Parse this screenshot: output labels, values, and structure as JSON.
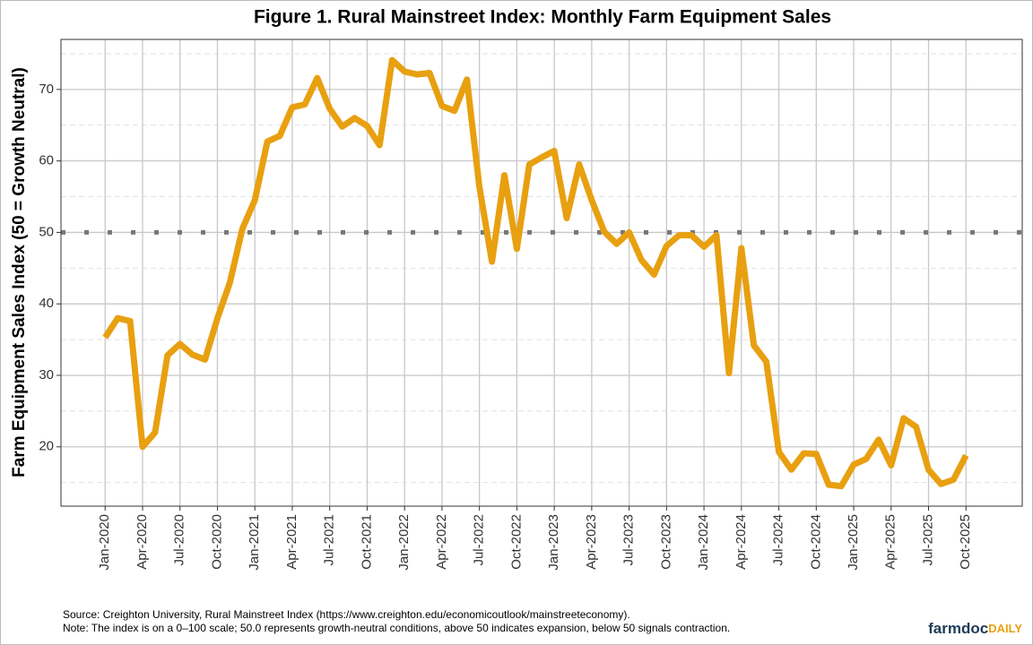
{
  "chart_data": {
    "type": "line",
    "title": "Figure 1. Rural Mainstreet Index: Monthly Farm Equipment Sales",
    "y_label": "Farm Equipment Sales Index (50 = Growth Neutral)",
    "categories": [
      "Jan-2020",
      null,
      null,
      "Apr-2020",
      null,
      null,
      "Jul-2020",
      null,
      null,
      "Oct-2020",
      null,
      null,
      "Jan-2021",
      null,
      null,
      "Apr-2021",
      null,
      null,
      "Jul-2021",
      null,
      null,
      "Oct-2021",
      null,
      null,
      "Jan-2022",
      null,
      null,
      "Apr-2022",
      null,
      null,
      "Jul-2022",
      null,
      null,
      "Oct-2022",
      null,
      null,
      "Jan-2023",
      null,
      null,
      "Apr-2023",
      null,
      null,
      "Jul-2023",
      null,
      null,
      "Oct-2023",
      null,
      null,
      "Jan-2024",
      null,
      null,
      "Apr-2024",
      null,
      null,
      "Jul-2024",
      null,
      null,
      "Oct-2024",
      null,
      null,
      "Jan-2025",
      null,
      null,
      "Apr-2025",
      null,
      null,
      "Jul-2025",
      null,
      null,
      "Oct-2025"
    ],
    "values": [
      35.3,
      38,
      37.6,
      20,
      22,
      32.8,
      34.4,
      32.9,
      32.2,
      38,
      43,
      50.5,
      54.5,
      62.7,
      63.5,
      67.5,
      67.9,
      71.6,
      67.3,
      64.8,
      66,
      64.9,
      62.2,
      74.1,
      72.5,
      72.1,
      72.3,
      67.7,
      67,
      71.4,
      56.4,
      45.9,
      58,
      47.7,
      59.5,
      60.5,
      61.4,
      52,
      59.5,
      54.5,
      50.1,
      48.4,
      50,
      46.1,
      44.1,
      48.1,
      49.6,
      49.6,
      48,
      49.6,
      30.3,
      47.8,
      34.2,
      31.9,
      19.3,
      16.8,
      19.1,
      19,
      14.7,
      14.5,
      17.5,
      18.3,
      21,
      17.4,
      24,
      22.8,
      16.8,
      14.8,
      15.4,
      18.8
    ],
    "color": "#e8a010",
    "ylim": [
      11.7,
      77
    ],
    "yticks": [
      20,
      30,
      40,
      50,
      60,
      70
    ],
    "minor_yticks": [
      15,
      25,
      35,
      45,
      55,
      65,
      75
    ],
    "reference_line": 50,
    "grid": true,
    "source": "Source: Creighton University, Rural Mainstreet Index (https://www.creighton.edu/economicoutlook/mainstreeteconomy).",
    "note": "Note: The index is on a 0–100 scale; 50.0 represents growth-neutral conditions, above 50 indicates expansion, below 50 signals contraction.",
    "logo_main": "farmdoc",
    "logo_accent": "DAILY"
  }
}
